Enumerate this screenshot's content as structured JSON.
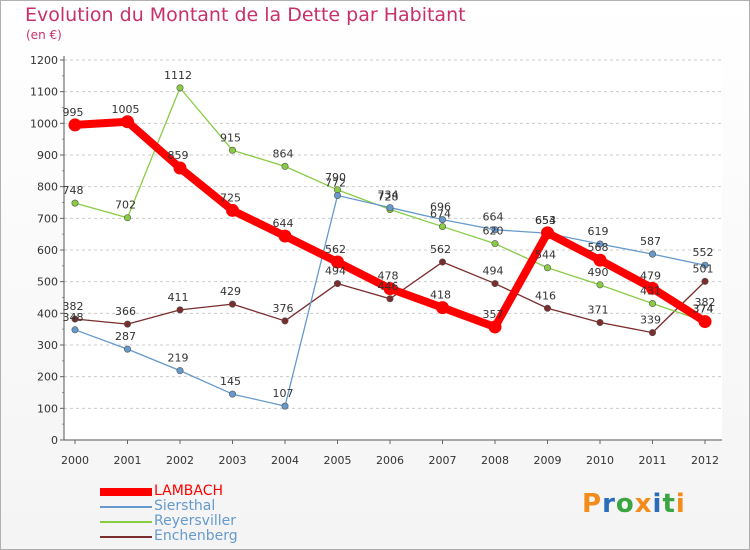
{
  "chart_data": {
    "type": "line",
    "title": "Evolution du Montant de la Dette par Habitant",
    "subtitle": "(en €)",
    "xlabel": "",
    "ylabel": "",
    "ylim": [
      0,
      1200
    ],
    "y_ticks": [
      "0",
      "100",
      "200",
      "300",
      "400",
      "500",
      "600",
      "700",
      "800",
      "900",
      "1000",
      "1100",
      "1200"
    ],
    "categories": [
      "2000",
      "2001",
      "2002",
      "2003",
      "2004",
      "2005",
      "2006",
      "2007",
      "2008",
      "2009",
      "2010",
      "2011",
      "2012"
    ],
    "series": [
      {
        "name": "LAMBACH",
        "color": "#ff0000",
        "values": [
          995,
          1005,
          859,
          725,
          644,
          562,
          478,
          418,
          357,
          654,
          568,
          479,
          374
        ],
        "labels": [
          "995",
          "1005",
          "859",
          "725",
          "644",
          "562",
          "478",
          "418",
          "357",
          "654",
          "568",
          "479",
          "374"
        ]
      },
      {
        "name": "Siersthal",
        "color": "#6699cc",
        "values": [
          348,
          287,
          219,
          145,
          107,
          772,
          734,
          696,
          664,
          653,
          619,
          587,
          552
        ],
        "labels": [
          "348",
          "287",
          "219",
          "145",
          "107",
          "772",
          "734",
          "696",
          "664",
          "653",
          "619",
          "587",
          "552"
        ]
      },
      {
        "name": "Reyersviller",
        "color": "#88cc44",
        "values": [
          748,
          702,
          1112,
          915,
          864,
          790,
          728,
          674,
          620,
          544,
          490,
          431,
          374
        ],
        "labels": [
          "748",
          "702",
          "1112",
          "915",
          "864",
          "790",
          "728",
          "674",
          "620",
          "544",
          "490",
          "431",
          "374"
        ]
      },
      {
        "name": "Enchenberg",
        "color": "#7b2c2c",
        "values": [
          382,
          366,
          411,
          429,
          376,
          494,
          446,
          562,
          494,
          416,
          371,
          339,
          501
        ],
        "labels": [
          "382",
          "366",
          "411",
          "429",
          "376",
          "494",
          "446",
          "562",
          "494",
          "416",
          "371",
          "339",
          "501"
        ]
      }
    ],
    "extra_labels": [
      {
        "year": "2012",
        "text": "382"
      }
    ],
    "legend_position": "bottom-left"
  },
  "logo": {
    "letters": [
      "P",
      "r",
      "o",
      "x",
      "i",
      "t",
      "i"
    ],
    "colors": [
      "#f28c1a",
      "#2a6ebb",
      "#3aa641",
      "#f28c1a",
      "#2a6ebb",
      "#3aa641",
      "#f28c1a"
    ]
  }
}
